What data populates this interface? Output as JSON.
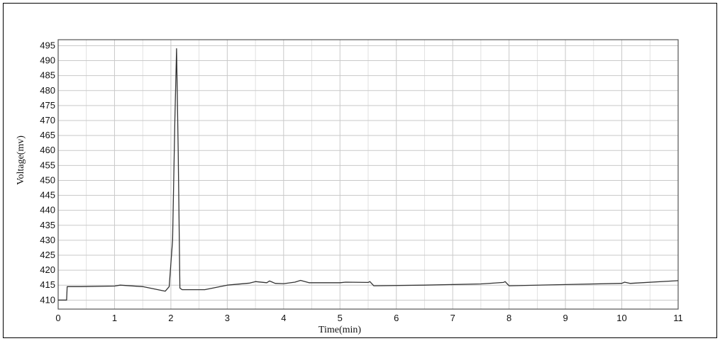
{
  "chart_data": {
    "type": "line",
    "title": "",
    "xlabel": "Time(min)",
    "ylabel": "Voltage(mv)",
    "xlim": [
      0,
      11
    ],
    "ylim": [
      407,
      497
    ],
    "x_ticks": [
      0,
      1,
      2,
      3,
      4,
      5,
      6,
      7,
      8,
      9,
      10,
      11
    ],
    "y_ticks": [
      410,
      415,
      420,
      425,
      430,
      435,
      440,
      445,
      450,
      455,
      460,
      465,
      470,
      475,
      480,
      485,
      490,
      495
    ],
    "grid": true,
    "legend": "none",
    "series": [
      {
        "x": [
          0.0,
          0.15,
          0.16,
          0.4,
          1.0,
          1.1,
          1.5,
          1.9,
          1.97,
          2.03,
          2.07,
          2.1,
          2.13,
          2.16,
          2.2,
          2.6,
          3.0,
          3.4,
          3.5,
          3.7,
          3.75,
          3.85,
          4.0,
          4.2,
          4.3,
          4.45,
          5.0,
          5.1,
          5.5,
          5.53,
          5.6,
          6.5,
          7.5,
          7.9,
          7.93,
          8.0,
          9.0,
          10.0,
          10.05,
          10.15,
          11.0
        ],
        "y": [
          410,
          410,
          414.5,
          414.5,
          414.7,
          415.0,
          414.5,
          413.0,
          414.5,
          430,
          470,
          494,
          460,
          414,
          413.5,
          413.5,
          415.0,
          415.7,
          416.2,
          415.8,
          416.4,
          415.6,
          415.5,
          416.0,
          416.6,
          415.8,
          415.8,
          416.0,
          415.9,
          416.2,
          414.8,
          415.0,
          415.4,
          415.9,
          416.2,
          414.8,
          415.2,
          415.6,
          416.0,
          415.6,
          416.5
        ]
      }
    ]
  }
}
